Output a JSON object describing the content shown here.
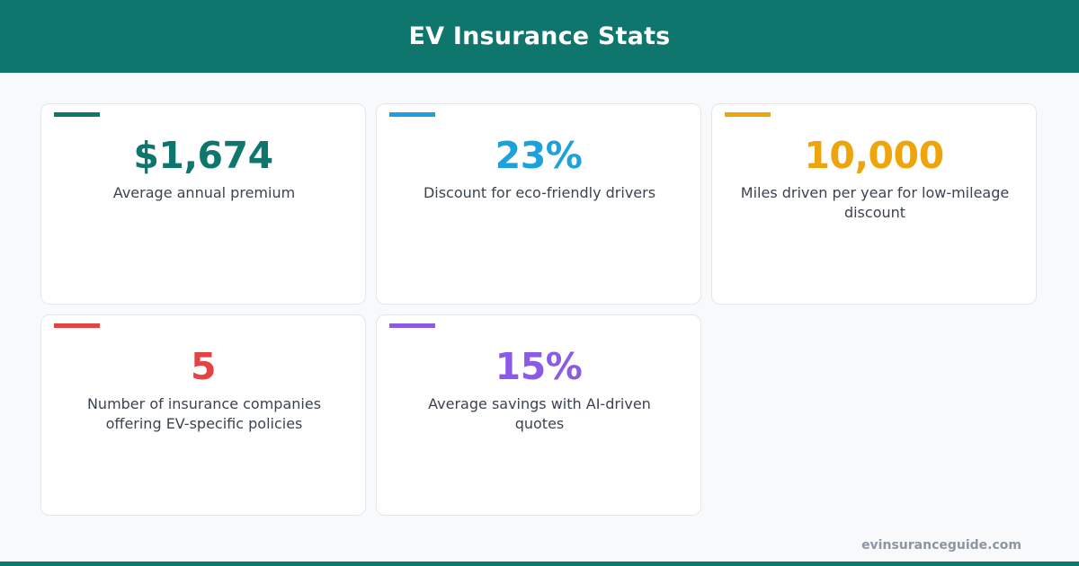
{
  "header": {
    "title": "EV Insurance Stats"
  },
  "stats": [
    {
      "value": "$1,674",
      "label": "Average annual premium",
      "color": "#0f766e"
    },
    {
      "value": "23%",
      "label": "Discount for eco-friendly drivers",
      "color": "#1ba1dc"
    },
    {
      "value": "10,000",
      "label": "Miles driven per year for low-mileage discount",
      "color": "#eea40b"
    },
    {
      "value": "5",
      "label": "Number of insurance companies offering EV-specific policies",
      "color": "#e54343"
    },
    {
      "value": "15%",
      "label": "Average savings with AI-driven quotes",
      "color": "#8b5be6"
    }
  ],
  "footer": {
    "site": "evinsuranceguide.com"
  }
}
